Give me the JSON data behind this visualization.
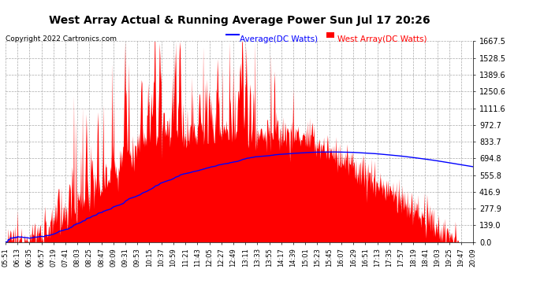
{
  "title": "West Array Actual & Running Average Power Sun Jul 17 20:26",
  "copyright": "Copyright 2022 Cartronics.com",
  "legend_avg": "Average(DC Watts)",
  "legend_west": "West Array(DC Watts)",
  "yticks": [
    0.0,
    139.0,
    277.9,
    416.9,
    555.8,
    694.8,
    833.7,
    972.7,
    1111.6,
    1250.6,
    1389.6,
    1528.5,
    1667.5
  ],
  "ylim": [
    0.0,
    1667.5
  ],
  "xtick_labels": [
    "05:51",
    "06:13",
    "06:35",
    "06:57",
    "07:19",
    "07:41",
    "08:03",
    "08:25",
    "08:47",
    "09:09",
    "09:31",
    "09:53",
    "10:15",
    "10:37",
    "10:59",
    "11:21",
    "11:43",
    "12:05",
    "12:27",
    "12:49",
    "13:11",
    "13:33",
    "13:55",
    "14:17",
    "14:39",
    "15:01",
    "15:23",
    "15:45",
    "16:07",
    "16:29",
    "16:51",
    "17:13",
    "17:35",
    "17:57",
    "18:19",
    "18:41",
    "19:03",
    "19:25",
    "19:47",
    "20:09"
  ],
  "background_color": "#ffffff",
  "grid_color": "#aaaaaa",
  "area_color": "#ff0000",
  "line_color": "#0000ff",
  "title_color": "#000000",
  "copyright_color": "#000000",
  "legend_avg_color": "#0000ff",
  "legend_west_color": "#ff0000"
}
